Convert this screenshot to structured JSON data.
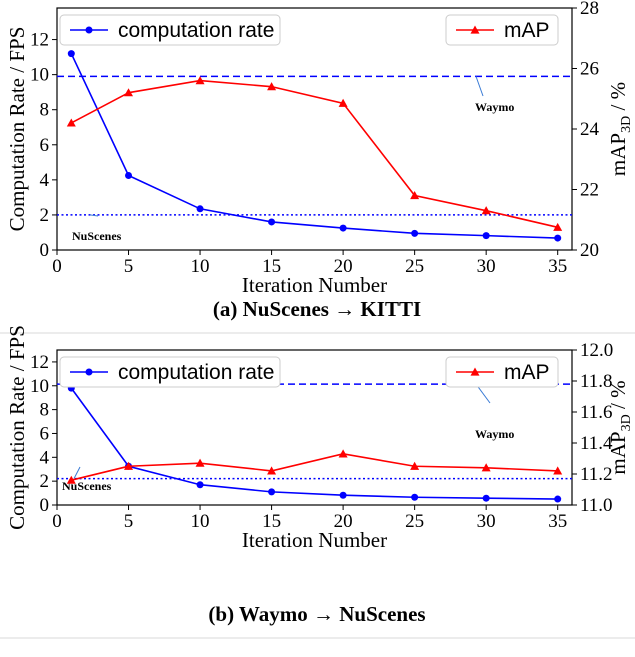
{
  "chart_data": [
    {
      "type": "line",
      "caption": "(a) NuScenes → KITTI",
      "xlabel": "Iteration Number",
      "ylabel": "Computation Rate / FPS",
      "ylabel_right": "mAP3D / %",
      "ylabel_right_main": "mAP",
      "ylabel_right_sub": "3D",
      "ylabel_right_suffix": " / %",
      "x": [
        1,
        5,
        10,
        15,
        20,
        25,
        30,
        35
      ],
      "xticks": [
        0,
        5,
        10,
        15,
        20,
        25,
        30,
        35
      ],
      "xlim": [
        0,
        36
      ],
      "ylim": [
        0,
        13.8
      ],
      "yticks": [
        0,
        2,
        4,
        6,
        8,
        10,
        12
      ],
      "ylim_right": [
        20,
        28
      ],
      "yticks_right": [
        20,
        22,
        24,
        26,
        28
      ],
      "series": [
        {
          "name": "computation rate",
          "axis": "left",
          "color": "#0000ff",
          "marker": "circle",
          "values": [
            11.2,
            4.25,
            2.35,
            1.6,
            1.25,
            0.95,
            0.82,
            0.68
          ]
        },
        {
          "name": "mAP",
          "axis": "right",
          "color": "#ff0000",
          "marker": "triangle",
          "values": [
            24.2,
            25.2,
            25.6,
            25.4,
            24.85,
            21.8,
            21.3,
            20.75
          ]
        }
      ],
      "reference_lines": [
        {
          "label": "Waymo",
          "value": 9.9,
          "style": "dashed",
          "color": "#0000ff"
        },
        {
          "label": "NuScenes",
          "value": 2.0,
          "style": "dotted",
          "color": "#0000ff"
        }
      ],
      "legend": [
        "top-left",
        "top-right"
      ],
      "grid": false
    },
    {
      "type": "line",
      "caption": "(b) Waymo → NuScenes",
      "xlabel": "Iteration Number",
      "ylabel": "Computation Rate / FPS",
      "ylabel_right": "mAP3D / %",
      "ylabel_right_main": "mAP",
      "ylabel_right_sub": "3D",
      "ylabel_right_suffix": " / %",
      "x": [
        1,
        5,
        10,
        15,
        20,
        25,
        30,
        35
      ],
      "xticks": [
        0,
        5,
        10,
        15,
        20,
        25,
        30,
        35
      ],
      "xlim": [
        0,
        36
      ],
      "ylim": [
        0,
        13
      ],
      "yticks": [
        0,
        2,
        4,
        6,
        8,
        10,
        12
      ],
      "ylim_right": [
        11.0,
        12.0
      ],
      "yticks_right": [
        "11.0",
        "11.2",
        "11.4",
        "11.6",
        "11.8",
        "12.0"
      ],
      "series": [
        {
          "name": "computation rate",
          "axis": "left",
          "color": "#0000ff",
          "marker": "circle",
          "values": [
            9.8,
            3.25,
            1.7,
            1.1,
            0.82,
            0.65,
            0.57,
            0.5
          ]
        },
        {
          "name": "mAP",
          "axis": "right",
          "color": "#ff0000",
          "marker": "triangle",
          "values": [
            11.16,
            11.25,
            11.27,
            11.22,
            11.33,
            11.25,
            11.24,
            11.22
          ]
        }
      ],
      "reference_lines": [
        {
          "label": "Waymo",
          "value": 11.78,
          "axis": "right",
          "style": "dashed",
          "color": "#0000ff"
        },
        {
          "label": "NuScenes",
          "value": 11.17,
          "axis": "right",
          "style": "dotted",
          "color": "#0000ff"
        }
      ],
      "legend": [
        "top-left",
        "top-right"
      ],
      "grid": false
    }
  ]
}
